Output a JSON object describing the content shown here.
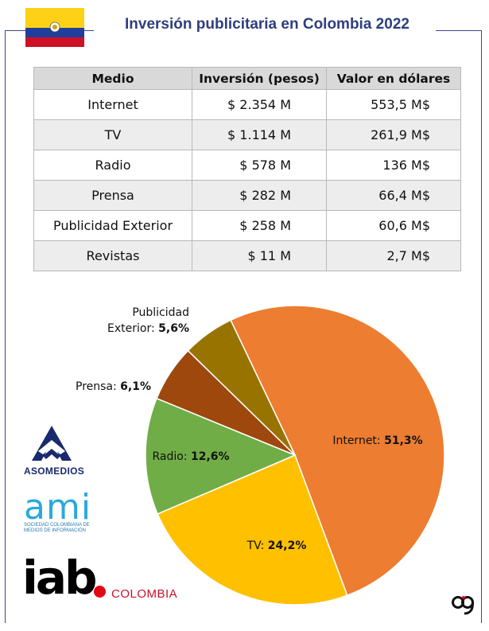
{
  "title": "Inversión publicitaria en Colombia 2022",
  "table": {
    "headers": [
      "Medio",
      "Inversión (pesos)",
      "Valor en dólares"
    ],
    "rows": [
      [
        "Internet",
        "$ 2.354 M",
        "553,5 M$"
      ],
      [
        "TV",
        "$ 1.114 M",
        "261,9 M$"
      ],
      [
        "Radio",
        "$ 578 M",
        "136 M$"
      ],
      [
        "Prensa",
        "$ 282 M",
        "66,4 M$"
      ],
      [
        "Publicidad Exterior",
        "$ 258 M",
        "60,6 M$"
      ],
      [
        "Revistas",
        "$ 11 M",
        "2,7 M$"
      ]
    ]
  },
  "chart_data": {
    "type": "pie",
    "title": "",
    "slices": [
      {
        "label": "Internet",
        "value": 51.3,
        "display": "51,3%",
        "color": "#ed7d31"
      },
      {
        "label": "TV",
        "value": 24.2,
        "display": "24,2%",
        "color": "#ffc000"
      },
      {
        "label": "Radio",
        "value": 12.6,
        "display": "12,6%",
        "color": "#70ad47"
      },
      {
        "label": "Prensa",
        "value": 6.1,
        "display": "6,1%",
        "color": "#9e480e"
      },
      {
        "label": "Publicidad Exterior",
        "value": 5.6,
        "display": "5,6%",
        "color": "#997300"
      }
    ]
  },
  "logos": {
    "asomedios": "ASOMEDIOS",
    "ami": "ami",
    "ami_subtitle": "SOCIEDAD COLOMBIANA DE MEDIOS DE INFORMACIÓN",
    "iab": "iab",
    "iab_country": "COLOMBIA"
  },
  "icons": [
    "colombia-flag-icon",
    "asomedios-logo-icon",
    "brand-mark-icon"
  ]
}
